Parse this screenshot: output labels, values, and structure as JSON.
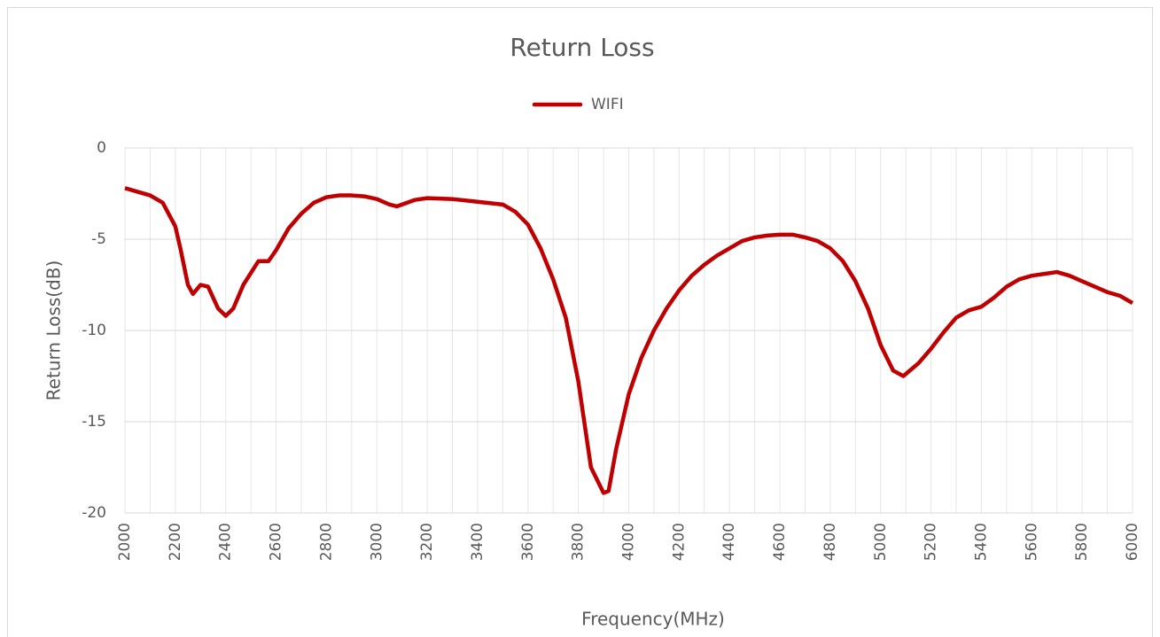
{
  "chart_data": {
    "type": "line",
    "title": "Return Loss",
    "x_label": "Frequency(MHz)",
    "y_label": "Return Loss(dB)",
    "x": [
      2000,
      2050,
      2100,
      2150,
      2200,
      2220,
      2250,
      2270,
      2300,
      2330,
      2370,
      2400,
      2430,
      2470,
      2530,
      2570,
      2600,
      2650,
      2700,
      2750,
      2800,
      2850,
      2900,
      2950,
      3000,
      3050,
      3080,
      3150,
      3200,
      3300,
      3400,
      3500,
      3550,
      3600,
      3650,
      3700,
      3750,
      3800,
      3850,
      3900,
      3920,
      3950,
      4000,
      4050,
      4100,
      4150,
      4200,
      4250,
      4300,
      4350,
      4400,
      4450,
      4500,
      4550,
      4600,
      4650,
      4700,
      4750,
      4800,
      4850,
      4900,
      4950,
      5000,
      5050,
      5090,
      5150,
      5200,
      5250,
      5300,
      5350,
      5400,
      5450,
      5500,
      5550,
      5600,
      5650,
      5700,
      5750,
      5800,
      5850,
      5900,
      5950,
      6000
    ],
    "series": [
      {
        "name": "WIFI",
        "color": "#c00000",
        "values": [
          -2.2,
          -2.4,
          -2.6,
          -3.0,
          -4.3,
          -5.5,
          -7.5,
          -8.0,
          -7.5,
          -7.6,
          -8.8,
          -9.2,
          -8.8,
          -7.5,
          -6.2,
          -6.2,
          -5.6,
          -4.4,
          -3.6,
          -3.0,
          -2.7,
          -2.6,
          -2.6,
          -2.65,
          -2.8,
          -3.1,
          -3.2,
          -2.85,
          -2.75,
          -2.8,
          -2.95,
          -3.1,
          -3.5,
          -4.2,
          -5.5,
          -7.2,
          -9.3,
          -12.8,
          -17.5,
          -18.9,
          -18.8,
          -16.5,
          -13.5,
          -11.5,
          -10.0,
          -8.8,
          -7.8,
          -7.0,
          -6.4,
          -5.9,
          -5.5,
          -5.1,
          -4.9,
          -4.8,
          -4.75,
          -4.75,
          -4.9,
          -5.1,
          -5.5,
          -6.2,
          -7.3,
          -8.8,
          -10.8,
          -12.2,
          -12.5,
          -11.8,
          -11.0,
          -10.1,
          -9.3,
          -8.9,
          -8.7,
          -8.2,
          -7.6,
          -7.2,
          -7.0,
          -6.9,
          -6.8,
          -7.0,
          -7.3,
          -7.6,
          -7.9,
          -8.1,
          -8.5
        ]
      }
    ],
    "xlim": [
      2000,
      6000
    ],
    "xticks": [
      2000,
      2200,
      2400,
      2600,
      2800,
      3000,
      3200,
      3400,
      3600,
      3800,
      4000,
      4200,
      4400,
      4600,
      4800,
      5000,
      5200,
      5400,
      5600,
      5800,
      6000
    ],
    "xminor_ticks": [
      2100,
      2300,
      2500,
      2700,
      2900,
      3100,
      3300,
      3500,
      3700,
      3900,
      4100,
      4300,
      4500,
      4700,
      4900,
      5100,
      5300,
      5500,
      5700,
      5900
    ],
    "ylim": [
      -20,
      0
    ],
    "yticks": [
      0,
      -5,
      -10,
      -15,
      -20
    ],
    "grid": true,
    "legend": "top"
  }
}
